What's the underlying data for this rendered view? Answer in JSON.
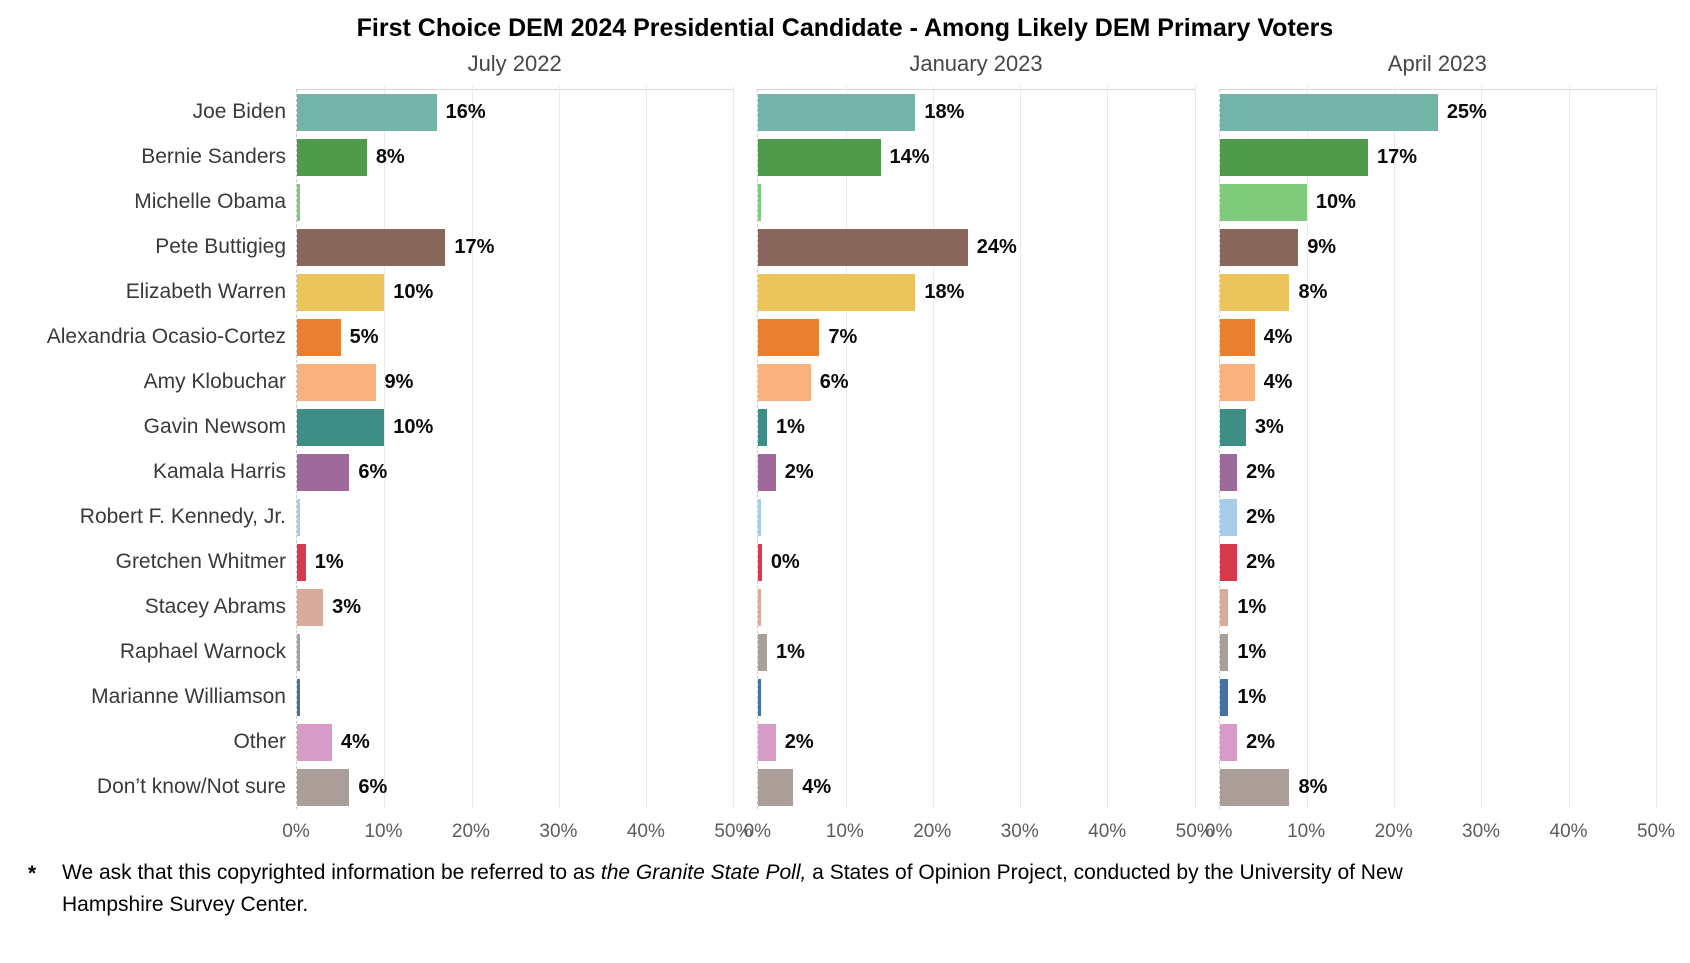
{
  "title": "First Choice DEM 2024 Presidential Candidate - Among Likely DEM Primary Voters",
  "footnote": {
    "marker": "*",
    "prefix": "We ask that this copyrighted information be referred to as ",
    "italic": "the Granite State Poll,",
    "suffix": " a States of Opinion Project, conducted by the University of New Hampshire Survey Center."
  },
  "chart_data": {
    "type": "bar",
    "orientation": "horizontal",
    "title": "First Choice DEM 2024 Presidential Candidate - Among Likely DEM Primary Voters",
    "panels": [
      "July 2022",
      "January 2023",
      "April 2023"
    ],
    "categories": [
      "Joe Biden",
      "Bernie Sanders",
      "Michelle Obama",
      "Pete Buttigieg",
      "Elizabeth Warren",
      "Alexandria Ocasio-Cortez",
      "Amy Klobuchar",
      "Gavin Newsom",
      "Kamala Harris",
      "Robert F. Kennedy, Jr.",
      "Gretchen Whitmer",
      "Stacey Abrams",
      "Raphael Warnock",
      "Marianne Williamson",
      "Other",
      "Don’t know/Not sure"
    ],
    "colors": [
      "#74b3a7",
      "#4f9a4b",
      "#80ca7c",
      "#8a675c",
      "#ecc45c",
      "#e8802f",
      "#f9b27d",
      "#3e8e85",
      "#9e6a9c",
      "#a9cde9",
      "#d9394c",
      "#d8ab9e",
      "#a7a09b",
      "#4372a3",
      "#d79bc8",
      "#ab9e98"
    ],
    "series": [
      {
        "name": "July 2022",
        "values": [
          16,
          8,
          0.3,
          17,
          10,
          5,
          9,
          10,
          6,
          0.3,
          1,
          3,
          0.3,
          0.3,
          4,
          6
        ],
        "labels": [
          "16%",
          "8%",
          "",
          "17%",
          "10%",
          "5%",
          "9%",
          "10%",
          "6%",
          "",
          "1%",
          "3%",
          "",
          "",
          "4%",
          "6%"
        ]
      },
      {
        "name": "January 2023",
        "values": [
          18,
          14,
          0.3,
          24,
          18,
          7,
          6,
          1,
          2,
          0.3,
          0.4,
          0.3,
          1,
          0.3,
          2,
          4
        ],
        "labels": [
          "18%",
          "14%",
          "",
          "24%",
          "18%",
          "7%",
          "6%",
          "1%",
          "2%",
          "",
          "0%",
          "",
          "1%",
          "",
          "2%",
          "4%"
        ]
      },
      {
        "name": "April 2023",
        "values": [
          25,
          17,
          10,
          9,
          8,
          4,
          4,
          3,
          2,
          2,
          2,
          1,
          1,
          1,
          2,
          8
        ],
        "labels": [
          "25%",
          "17%",
          "10%",
          "9%",
          "8%",
          "4%",
          "4%",
          "3%",
          "2%",
          "2%",
          "2%",
          "1%",
          "1%",
          "1%",
          "2%",
          "8%"
        ]
      }
    ],
    "x_ticks": [
      {
        "value": 0,
        "label": "0%"
      },
      {
        "value": 10,
        "label": "10%"
      },
      {
        "value": 20,
        "label": "20%"
      },
      {
        "value": 30,
        "label": "30%"
      },
      {
        "value": 40,
        "label": "40%"
      },
      {
        "value": 50,
        "label": "50%"
      }
    ],
    "xlim": [
      0,
      50
    ],
    "grid": true,
    "legend": "none"
  }
}
